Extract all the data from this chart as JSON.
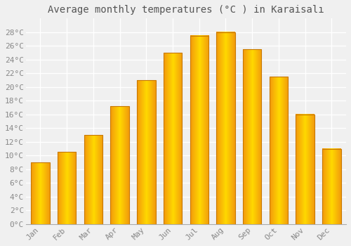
{
  "title": "Average monthly temperatures (°C ) in Karaisalı",
  "months": [
    "Jan",
    "Feb",
    "Mar",
    "Apr",
    "May",
    "Jun",
    "Jul",
    "Aug",
    "Sep",
    "Oct",
    "Nov",
    "Dec"
  ],
  "values": [
    9.0,
    10.5,
    13.0,
    17.2,
    21.0,
    25.0,
    27.5,
    28.0,
    25.5,
    21.5,
    16.0,
    11.0
  ],
  "bar_color_center": "#FFD000",
  "bar_color_edge": "#F0A000",
  "bar_border_color": "#C87800",
  "ylim": [
    0,
    30
  ],
  "yticks": [
    0,
    2,
    4,
    6,
    8,
    10,
    12,
    14,
    16,
    18,
    20,
    22,
    24,
    26,
    28
  ],
  "ytick_labels": [
    "0°C",
    "2°C",
    "4°C",
    "6°C",
    "8°C",
    "10°C",
    "12°C",
    "14°C",
    "16°C",
    "18°C",
    "20°C",
    "22°C",
    "24°C",
    "26°C",
    "28°C"
  ],
  "background_color": "#f0f0f0",
  "grid_color": "#ffffff",
  "title_fontsize": 10,
  "tick_fontsize": 8,
  "bar_width": 0.7
}
